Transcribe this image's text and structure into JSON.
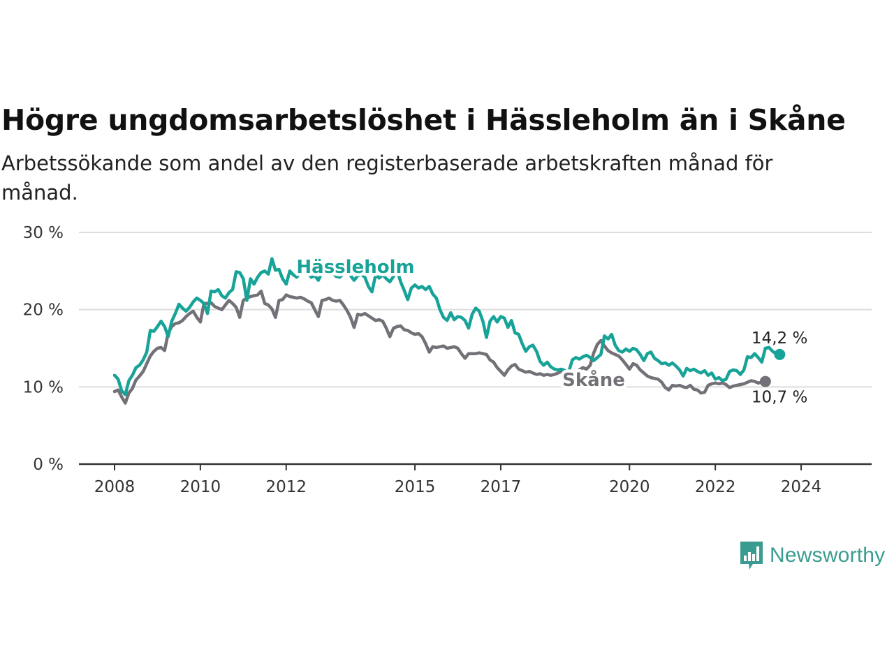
{
  "title": "Högre ungdomsarbetslöshet i Hässleholm än i Skåne",
  "subtitle": "Arbetssökande som andel av den registerbaserade arbetskraften månad för månad.",
  "brand": {
    "name": "Newsworthy",
    "logo_icon": "bar-chart-speech-bubble-icon"
  },
  "colors": {
    "hassleholm": "#17a398",
    "skane": "#737077",
    "grid": "#dddddd",
    "axis": "#333333"
  },
  "chart_data": {
    "type": "line",
    "x_start": "2008-01",
    "x_end": "2025-06",
    "frequency": "monthly",
    "ylim": [
      0,
      30
    ],
    "y_ticks": [
      0,
      10,
      20,
      30
    ],
    "y_tick_labels": [
      "0 %",
      "10 %",
      "20 %",
      "30 %"
    ],
    "x_tick_labels": [
      "2008",
      "2010",
      "2012",
      "2015",
      "2017",
      "2020",
      "2022",
      "2024"
    ],
    "grid": "horizontal",
    "legend": "inline labels",
    "series": [
      {
        "name": "Hässleholm",
        "color": "#17a398",
        "end_label": "14,2 %",
        "values": [
          11.5,
          11.0,
          9.5,
          9.0,
          10.8,
          11.5,
          12.5,
          12.8,
          13.5,
          14.5,
          17.3,
          17.2,
          17.8,
          18.5,
          17.8,
          16.5,
          18.5,
          19.5,
          20.7,
          20.2,
          19.8,
          20.3,
          21.0,
          21.5,
          21.2,
          20.8,
          19.5,
          22.4,
          22.3,
          22.6,
          21.8,
          21.5,
          22.2,
          22.6,
          24.9,
          24.8,
          24.0,
          21.2,
          24.0,
          23.3,
          24.2,
          24.8,
          25.0,
          24.6,
          26.6,
          25.1,
          25.2,
          24.0,
          23.3,
          25.0,
          24.5,
          24.2,
          24.9,
          25.0,
          24.8,
          24.2,
          24.4,
          23.8,
          24.8,
          25.2,
          25.5,
          24.8,
          24.3,
          24.2,
          24.7,
          25.2,
          24.4,
          23.8,
          24.4,
          24.6,
          24.2,
          23.0,
          22.3,
          24.5,
          24.1,
          24.5,
          24.0,
          23.6,
          24.3,
          25.2,
          23.6,
          22.5,
          21.3,
          22.8,
          23.2,
          22.8,
          23.0,
          22.6,
          23.0,
          22.0,
          21.5,
          20.0,
          19.0,
          18.6,
          19.6,
          18.7,
          19.1,
          19.0,
          18.6,
          17.6,
          19.4,
          20.2,
          19.8,
          18.5,
          16.4,
          18.5,
          19.1,
          18.4,
          19.1,
          18.9,
          17.7,
          18.6,
          17.0,
          16.8,
          15.6,
          14.6,
          15.2,
          15.4,
          14.6,
          13.3,
          12.8,
          13.2,
          12.6,
          12.3,
          12.2,
          12.3,
          12.1,
          11.9,
          13.5,
          13.8,
          13.6,
          13.9,
          14.1,
          13.8,
          13.4,
          13.8,
          14.2,
          16.6,
          16.2,
          16.8,
          15.4,
          14.7,
          14.5,
          14.9,
          14.6,
          15.0,
          14.8,
          14.2,
          13.4,
          14.3,
          14.5,
          13.7,
          13.4,
          13.0,
          13.1,
          12.8,
          13.1,
          12.7,
          12.2,
          11.4,
          12.4,
          12.1,
          12.3,
          12.0,
          11.8,
          12.1,
          11.5,
          11.8,
          11.0,
          11.2,
          10.8,
          11.0,
          12.0,
          12.2,
          12.1,
          11.6,
          12.2,
          13.9,
          13.8,
          14.3,
          13.8,
          13.2,
          15.0,
          15.1,
          14.6,
          14.3,
          14.2
        ]
      },
      {
        "name": "Skåne",
        "color": "#737077",
        "end_label": "10,7 %",
        "values": [
          9.4,
          9.6,
          8.7,
          7.9,
          9.2,
          9.8,
          10.9,
          11.4,
          12.0,
          13.0,
          14.0,
          14.6,
          15.0,
          15.1,
          14.7,
          17.0,
          17.8,
          18.2,
          18.3,
          18.6,
          19.1,
          19.5,
          19.8,
          19.0,
          18.4,
          20.8,
          20.8,
          20.9,
          20.4,
          20.2,
          20.0,
          20.6,
          21.2,
          20.8,
          20.3,
          19.0,
          21.2,
          21.5,
          21.7,
          21.8,
          21.9,
          22.4,
          20.8,
          20.6,
          20.1,
          19.0,
          21.2,
          21.3,
          21.9,
          21.7,
          21.6,
          21.5,
          21.6,
          21.4,
          21.1,
          20.9,
          20.0,
          19.1,
          21.2,
          21.3,
          21.5,
          21.2,
          21.1,
          21.2,
          20.6,
          19.9,
          19.0,
          17.7,
          19.4,
          19.3,
          19.5,
          19.2,
          18.9,
          18.6,
          18.7,
          18.5,
          17.6,
          16.5,
          17.6,
          17.8,
          17.9,
          17.4,
          17.3,
          17.0,
          16.8,
          16.9,
          16.5,
          15.6,
          14.5,
          15.2,
          15.1,
          15.2,
          15.3,
          15.0,
          15.1,
          15.2,
          15.0,
          14.3,
          13.7,
          14.3,
          14.3,
          14.3,
          14.4,
          14.3,
          14.2,
          13.5,
          13.2,
          12.5,
          12.0,
          11.5,
          12.2,
          12.7,
          12.9,
          12.3,
          12.1,
          11.9,
          12.0,
          11.8,
          11.6,
          11.7,
          11.5,
          11.6,
          11.5,
          11.6,
          11.8,
          12.0,
          11.7,
          11.5,
          11.9,
          12.0,
          12.2,
          12.5,
          12.3,
          12.8,
          14.4,
          15.5,
          16.0,
          15.3,
          14.7,
          14.4,
          14.2,
          14.0,
          13.5,
          12.9,
          12.3,
          13.0,
          12.8,
          12.2,
          11.8,
          11.4,
          11.2,
          11.1,
          11.0,
          10.6,
          9.9,
          9.6,
          10.2,
          10.1,
          10.2,
          10.0,
          9.9,
          10.2,
          9.7,
          9.6,
          9.2,
          9.3,
          10.2,
          10.4,
          10.5,
          10.4,
          10.5,
          10.3,
          9.9,
          10.1,
          10.2,
          10.3,
          10.4,
          10.6,
          10.8,
          10.7,
          10.5,
          10.6,
          10.7
        ]
      }
    ]
  }
}
